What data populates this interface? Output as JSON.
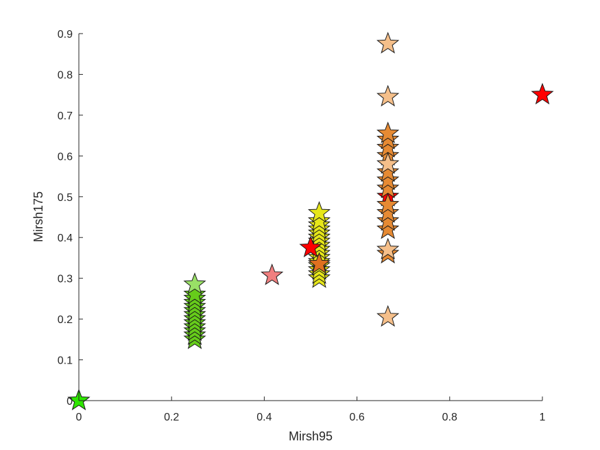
{
  "chart_data": {
    "type": "scatter",
    "title": "",
    "xlabel": "Mirsh95",
    "ylabel": "Mirsh175",
    "xlim": [
      0,
      1
    ],
    "ylim": [
      0,
      0.9
    ],
    "xticks": [
      0,
      0.2,
      0.4,
      0.6,
      0.8,
      1
    ],
    "xtick_labels": [
      "0",
      "0.2",
      "0.4",
      "0.6",
      "0.8",
      "1"
    ],
    "yticks": [
      0,
      0.1,
      0.2,
      0.3,
      0.4,
      0.5,
      0.6,
      0.7,
      0.8,
      0.9
    ],
    "ytick_labels": [
      "0",
      "0.1",
      "0.2",
      "0.3",
      "0.4",
      "0.5",
      "0.6",
      "0.7",
      "0.8",
      "0.9"
    ],
    "grid": false,
    "marker": "star",
    "series": [
      {
        "color": "#2ee600",
        "points": [
          [
            0,
            0
          ]
        ]
      },
      {
        "color": "#66cc1a",
        "points": [
          [
            0.25,
            0.15
          ],
          [
            0.25,
            0.16
          ],
          [
            0.25,
            0.17
          ],
          [
            0.25,
            0.18
          ],
          [
            0.25,
            0.19
          ],
          [
            0.25,
            0.2
          ],
          [
            0.25,
            0.21
          ],
          [
            0.25,
            0.22
          ],
          [
            0.25,
            0.23
          ],
          [
            0.25,
            0.24
          ],
          [
            0.25,
            0.25
          ],
          [
            0.25,
            0.26
          ]
        ]
      },
      {
        "color": "#99e066",
        "points": [
          [
            0.25,
            0.285
          ]
        ]
      },
      {
        "color": "#f07f7f",
        "points": [
          [
            0.4167,
            0.307
          ]
        ]
      },
      {
        "color": "#e6e619",
        "points": [
          [
            0.5185,
            0.3
          ],
          [
            0.5185,
            0.31
          ],
          [
            0.5185,
            0.32
          ],
          [
            0.5185,
            0.33
          ],
          [
            0.5185,
            0.34
          ],
          [
            0.5185,
            0.35
          ],
          [
            0.5185,
            0.36
          ],
          [
            0.5185,
            0.37
          ],
          [
            0.5185,
            0.38
          ],
          [
            0.5185,
            0.39
          ],
          [
            0.5185,
            0.4
          ],
          [
            0.5185,
            0.41
          ],
          [
            0.5185,
            0.42
          ],
          [
            0.5185,
            0.43
          ],
          [
            0.5185,
            0.44
          ],
          [
            0.5185,
            0.46
          ]
        ]
      },
      {
        "color": "#e07020",
        "points": [
          [
            0.5185,
            0.335
          ]
        ]
      },
      {
        "color": "#ff0000",
        "points": [
          [
            0.5,
            0.375
          ],
          [
            0.6667,
            0.5
          ],
          [
            1,
            0.75
          ]
        ]
      },
      {
        "color": "#e68a33",
        "points": [
          [
            0.6667,
            0.36
          ],
          [
            0.6667,
            0.42
          ],
          [
            0.6667,
            0.44
          ],
          [
            0.6667,
            0.46
          ],
          [
            0.6667,
            0.48
          ],
          [
            0.6667,
            0.52
          ],
          [
            0.6667,
            0.54
          ],
          [
            0.6667,
            0.56
          ],
          [
            0.6667,
            0.6
          ],
          [
            0.6667,
            0.62
          ],
          [
            0.6667,
            0.64
          ],
          [
            0.6667,
            0.655
          ]
        ]
      },
      {
        "color": "#f5bf8a",
        "points": [
          [
            0.6667,
            0.205
          ],
          [
            0.6667,
            0.37
          ],
          [
            0.6667,
            0.58
          ],
          [
            0.6667,
            0.745
          ],
          [
            0.6667,
            0.875
          ]
        ]
      }
    ]
  }
}
